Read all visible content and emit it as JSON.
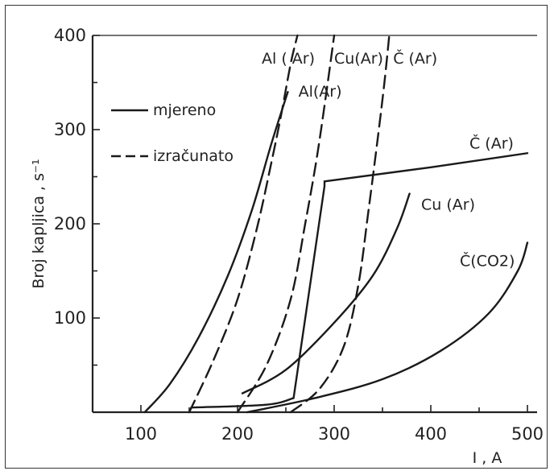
{
  "chart_data": {
    "type": "line",
    "title": "",
    "xlabel": "I , A",
    "ylabel": "Broj kapljica , s⁻¹",
    "xlim": [
      50,
      510
    ],
    "ylim": [
      0,
      400
    ],
    "xticks": [
      100,
      200,
      300,
      400,
      500
    ],
    "yticks": [
      100,
      200,
      300,
      400
    ],
    "grid": false,
    "legend": {
      "placement": "upper-left",
      "entries": [
        {
          "label": "mjereno",
          "style": "solid"
        },
        {
          "label": "izračunato",
          "style": "dashed"
        }
      ]
    },
    "series": [
      {
        "name": "Al(Ar)",
        "style": "solid",
        "x": [
          104,
          130,
          160,
          190,
          215,
          235,
          252
        ],
        "y": [
          0,
          30,
          80,
          145,
          215,
          285,
          340
        ]
      },
      {
        "name": "Al ( Ar)",
        "style": "dashed",
        "x": [
          150,
          175,
          200,
          220,
          235,
          245,
          255,
          262
        ],
        "y": [
          0,
          55,
          120,
          195,
          265,
          315,
          370,
          400
        ]
      },
      {
        "name": "Cu(Ar)",
        "style": "dashed",
        "x": [
          200,
          230,
          255,
          270,
          282,
          292,
          300
        ],
        "y": [
          0,
          50,
          120,
          200,
          270,
          340,
          400
        ]
      },
      {
        "name": "Č (Ar)",
        "style": "dashed",
        "x": [
          255,
          285,
          310,
          325,
          335,
          345,
          352,
          357
        ],
        "y": [
          0,
          25,
          70,
          135,
          210,
          290,
          350,
          400
        ]
      },
      {
        "name": "Cu (Ar)",
        "style": "solid",
        "x": [
          205,
          250,
          300,
          340,
          365,
          378
        ],
        "y": [
          20,
          45,
          95,
          145,
          195,
          232
        ]
      },
      {
        "name": "Č (Ar)",
        "style": "solid",
        "x": [
          152,
          230,
          258,
          290,
          290,
          400,
          500
        ],
        "y": [
          5,
          8,
          15,
          240,
          245,
          260,
          275
        ]
      },
      {
        "name": "Č(CO2)",
        "style": "solid",
        "x": [
          210,
          280,
          350,
          410,
          460,
          490,
          500
        ],
        "y": [
          0,
          15,
          35,
          65,
          105,
          150,
          180
        ]
      }
    ],
    "labels": [
      {
        "text": "Al ( Ar)",
        "x": 225,
        "y": 370
      },
      {
        "text": "Al(Ar)",
        "x": 263,
        "y": 335
      },
      {
        "text": "Cu(Ar)",
        "x": 300,
        "y": 370
      },
      {
        "text": "Č (Ar)",
        "x": 361,
        "y": 370
      },
      {
        "text": "Č (Ar)",
        "x": 440,
        "y": 280
      },
      {
        "text": "Cu (Ar)",
        "x": 390,
        "y": 215
      },
      {
        "text": "Č(CO2)",
        "x": 430,
        "y": 155
      }
    ]
  }
}
